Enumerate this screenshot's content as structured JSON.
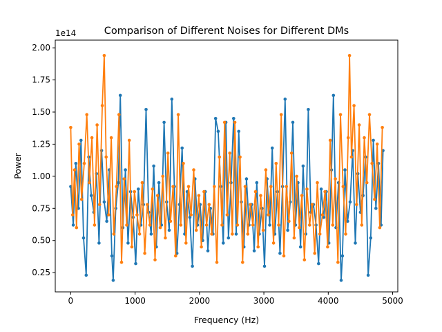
{
  "chart_data": {
    "type": "line",
    "title": "Comparison of Different Noises for Different DMs",
    "xlabel": "Frequency (Hz)",
    "ylabel": "Power",
    "y_multiplier_label": "1e14",
    "xlim": [
      -240,
      5080
    ],
    "ylim": [
      0.1,
      2.06
    ],
    "xticks": [
      0,
      1000,
      2000,
      3000,
      4000,
      5000
    ],
    "xtick_labels": [
      "0",
      "1000",
      "2000",
      "3000",
      "4000",
      "5000"
    ],
    "yticks": [
      0.25,
      0.5,
      0.75,
      1.0,
      1.25,
      1.5,
      1.75,
      2.0
    ],
    "ytick_labels": [
      "0.25",
      "0.50",
      "0.75",
      "1.00",
      "1.25",
      "1.50",
      "1.75",
      "2.00"
    ],
    "grid": false,
    "legend": "none",
    "series": [
      {
        "color": "#1f77b4",
        "marker": "circle",
        "x_start": 0,
        "x_step": 40,
        "points": [
          [
            0,
            0.92
          ],
          [
            40,
            0.62
          ],
          [
            80,
            1.1
          ],
          [
            120,
            0.75
          ],
          [
            160,
            1.28
          ],
          [
            200,
            0.52
          ],
          [
            240,
            0.23
          ],
          [
            280,
            1.15
          ],
          [
            320,
            0.85
          ],
          [
            360,
            0.72
          ],
          [
            400,
            1.02
          ],
          [
            440,
            0.48
          ],
          [
            480,
            1.2
          ],
          [
            520,
            0.8
          ],
          [
            560,
            0.65
          ],
          [
            600,
            1.05
          ],
          [
            640,
            0.38
          ],
          [
            660,
            0.19
          ],
          [
            700,
            0.75
          ],
          [
            740,
            0.95
          ],
          [
            770,
            1.63
          ],
          [
            810,
            0.6
          ],
          [
            850,
            1.05
          ],
          [
            890,
            0.48
          ],
          [
            930,
            0.88
          ],
          [
            970,
            0.68
          ],
          [
            1010,
            0.32
          ],
          [
            1050,
            0.9
          ],
          [
            1090,
            0.62
          ],
          [
            1130,
            0.78
          ],
          [
            1170,
            1.52
          ],
          [
            1210,
            0.72
          ],
          [
            1250,
            0.55
          ],
          [
            1290,
            1.08
          ],
          [
            1330,
            0.45
          ],
          [
            1370,
            0.95
          ],
          [
            1410,
            0.62
          ],
          [
            1450,
            1.42
          ],
          [
            1490,
            0.8
          ],
          [
            1530,
            0.58
          ],
          [
            1570,
            1.6
          ],
          [
            1610,
            0.92
          ],
          [
            1650,
            0.4
          ],
          [
            1690,
            0.78
          ],
          [
            1730,
            1.22
          ],
          [
            1770,
            0.55
          ],
          [
            1810,
            0.88
          ],
          [
            1850,
            0.68
          ],
          [
            1890,
            0.3
          ],
          [
            1930,
            0.98
          ],
          [
            1970,
            0.62
          ],
          [
            2010,
            0.78
          ],
          [
            2050,
            0.5
          ],
          [
            2090,
            0.88
          ],
          [
            2130,
            0.42
          ],
          [
            2170,
            0.75
          ],
          [
            2210,
            0.55
          ],
          [
            2250,
            1.45
          ],
          [
            2290,
            1.35
          ],
          [
            2330,
            0.92
          ],
          [
            2370,
            0.48
          ],
          [
            2410,
            1.42
          ],
          [
            2450,
            0.52
          ],
          [
            2490,
            0.95
          ],
          [
            2530,
            1.45
          ],
          [
            2570,
            0.55
          ],
          [
            2610,
            1.35
          ],
          [
            2650,
            0.8
          ],
          [
            2690,
            0.45
          ],
          [
            2730,
            0.98
          ],
          [
            2770,
            0.62
          ],
          [
            2810,
            0.78
          ],
          [
            2850,
            0.42
          ],
          [
            2890,
            0.95
          ],
          [
            2930,
            0.55
          ],
          [
            2970,
            0.75
          ],
          [
            3010,
            0.3
          ],
          [
            3050,
            0.98
          ],
          [
            3090,
            0.62
          ],
          [
            3130,
            1.22
          ],
          [
            3170,
            0.55
          ],
          [
            3210,
            0.88
          ],
          [
            3250,
            0.4
          ],
          [
            3290,
            0.92
          ],
          [
            3330,
            1.6
          ],
          [
            3370,
            0.58
          ],
          [
            3410,
            0.8
          ],
          [
            3450,
            1.42
          ],
          [
            3490,
            0.62
          ],
          [
            3530,
            0.95
          ],
          [
            3570,
            0.45
          ],
          [
            3610,
            1.08
          ],
          [
            3650,
            0.55
          ],
          [
            3690,
            1.52
          ],
          [
            3730,
            0.72
          ],
          [
            3770,
            0.78
          ],
          [
            3810,
            0.62
          ],
          [
            3850,
            0.32
          ],
          [
            3890,
            0.9
          ],
          [
            3930,
            0.68
          ],
          [
            3970,
            0.88
          ],
          [
            4010,
            0.48
          ],
          [
            4050,
            1.05
          ],
          [
            4080,
            1.63
          ],
          [
            4120,
            0.6
          ],
          [
            4160,
            0.95
          ],
          [
            4200,
            0.19
          ],
          [
            4220,
            0.38
          ],
          [
            4260,
            1.05
          ],
          [
            4300,
            0.65
          ],
          [
            4340,
            0.8
          ],
          [
            4380,
            1.2
          ],
          [
            4420,
            0.48
          ],
          [
            4460,
            1.02
          ],
          [
            4500,
            0.72
          ],
          [
            4540,
            0.85
          ],
          [
            4580,
            1.15
          ],
          [
            4620,
            0.23
          ],
          [
            4660,
            0.52
          ],
          [
            4700,
            1.28
          ],
          [
            4740,
            0.75
          ],
          [
            4780,
            1.1
          ],
          [
            4820,
            0.62
          ],
          [
            4850,
            1.2
          ]
        ]
      },
      {
        "color": "#ff7f0e",
        "marker": "circle",
        "points": [
          [
            0,
            1.38
          ],
          [
            30,
            0.7
          ],
          [
            60,
            1.05
          ],
          [
            90,
            0.6
          ],
          [
            130,
            1.25
          ],
          [
            170,
            0.82
          ],
          [
            210,
            1.1
          ],
          [
            250,
            1.48
          ],
          [
            290,
            0.95
          ],
          [
            330,
            1.3
          ],
          [
            370,
            0.62
          ],
          [
            410,
            1.4
          ],
          [
            450,
            0.78
          ],
          [
            490,
            1.55
          ],
          [
            520,
            1.94
          ],
          [
            550,
            1.15
          ],
          [
            590,
            0.7
          ],
          [
            630,
            1.3
          ],
          [
            670,
            0.55
          ],
          [
            710,
            0.92
          ],
          [
            750,
            1.48
          ],
          [
            790,
            0.33
          ],
          [
            830,
            0.98
          ],
          [
            870,
            0.62
          ],
          [
            910,
            1.28
          ],
          [
            950,
            0.45
          ],
          [
            990,
            0.88
          ],
          [
            1030,
            0.7
          ],
          [
            1070,
            0.55
          ],
          [
            1110,
            0.95
          ],
          [
            1150,
            0.4
          ],
          [
            1190,
            0.78
          ],
          [
            1230,
            0.62
          ],
          [
            1270,
            0.9
          ],
          [
            1310,
            0.35
          ],
          [
            1350,
            0.85
          ],
          [
            1390,
            0.6
          ],
          [
            1430,
            1.0
          ],
          [
            1470,
            0.52
          ],
          [
            1510,
            1.18
          ],
          [
            1550,
            0.65
          ],
          [
            1590,
            0.92
          ],
          [
            1630,
            0.38
          ],
          [
            1670,
            1.48
          ],
          [
            1710,
            0.62
          ],
          [
            1750,
            1.1
          ],
          [
            1790,
            0.48
          ],
          [
            1830,
            0.92
          ],
          [
            1870,
            0.7
          ],
          [
            1910,
            1.05
          ],
          [
            1950,
            0.58
          ],
          [
            1990,
            0.85
          ],
          [
            2030,
            0.45
          ],
          [
            2070,
            0.88
          ],
          [
            2110,
            0.62
          ],
          [
            2150,
            0.78
          ],
          [
            2190,
            0.55
          ],
          [
            2230,
            0.92
          ],
          [
            2270,
            0.33
          ],
          [
            2310,
            1.15
          ],
          [
            2350,
            0.62
          ],
          [
            2390,
            1.42
          ],
          [
            2430,
            0.7
          ],
          [
            2470,
            1.18
          ],
          [
            2510,
            0.55
          ],
          [
            2550,
            1.42
          ],
          [
            2590,
            0.62
          ],
          [
            2630,
            1.15
          ],
          [
            2670,
            0.33
          ],
          [
            2710,
            0.92
          ],
          [
            2750,
            0.55
          ],
          [
            2790,
            0.78
          ],
          [
            2830,
            0.62
          ],
          [
            2870,
            0.88
          ],
          [
            2910,
            0.45
          ],
          [
            2950,
            0.85
          ],
          [
            2990,
            0.58
          ],
          [
            3030,
            1.05
          ],
          [
            3070,
            0.7
          ],
          [
            3110,
            0.92
          ],
          [
            3150,
            0.48
          ],
          [
            3190,
            1.1
          ],
          [
            3230,
            0.62
          ],
          [
            3270,
            1.48
          ],
          [
            3310,
            0.38
          ],
          [
            3350,
            0.92
          ],
          [
            3390,
            0.65
          ],
          [
            3430,
            1.18
          ],
          [
            3470,
            0.52
          ],
          [
            3510,
            1.0
          ],
          [
            3550,
            0.6
          ],
          [
            3590,
            0.85
          ],
          [
            3630,
            0.35
          ],
          [
            3670,
            0.9
          ],
          [
            3710,
            0.62
          ],
          [
            3750,
            0.78
          ],
          [
            3790,
            0.4
          ],
          [
            3830,
            0.95
          ],
          [
            3870,
            0.55
          ],
          [
            3910,
            0.7
          ],
          [
            3950,
            0.88
          ],
          [
            3990,
            0.45
          ],
          [
            4030,
            1.28
          ],
          [
            4070,
            0.62
          ],
          [
            4110,
            0.98
          ],
          [
            4150,
            0.33
          ],
          [
            4190,
            1.48
          ],
          [
            4230,
            0.92
          ],
          [
            4270,
            0.55
          ],
          [
            4310,
            1.3
          ],
          [
            4330,
            1.94
          ],
          [
            4360,
            1.15
          ],
          [
            4400,
            1.55
          ],
          [
            4440,
            0.78
          ],
          [
            4480,
            1.4
          ],
          [
            4520,
            0.62
          ],
          [
            4560,
            1.3
          ],
          [
            4600,
            0.95
          ],
          [
            4640,
            1.48
          ],
          [
            4680,
            1.1
          ],
          [
            4720,
            0.82
          ],
          [
            4760,
            1.25
          ],
          [
            4800,
            0.6
          ],
          [
            4840,
            1.38
          ]
        ]
      }
    ]
  }
}
